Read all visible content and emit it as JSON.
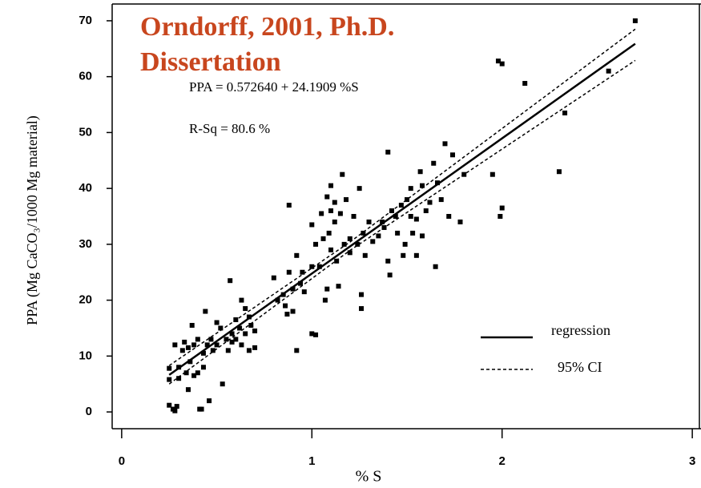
{
  "chart_data": {
    "type": "scatter",
    "title_lines": [
      "Orndorff, 2001, Ph.D.",
      "Dissertation"
    ],
    "annotations": [
      "PPA = 0.572640 + 24.1909 %S",
      "R-Sq = 80.6 %"
    ],
    "x_label": "% S",
    "y_label": "PPA (Mg CaCO₃/1000 Mg material)",
    "xlim": [
      -0.05,
      3.05
    ],
    "ylim": [
      -3,
      73
    ],
    "xticks": [
      0,
      1,
      2,
      3
    ],
    "yticks": [
      0,
      10,
      20,
      30,
      40,
      50,
      60,
      70
    ],
    "color": "#000000",
    "x": [
      0.25,
      0.25,
      0.25,
      0.27,
      0.28,
      0.29,
      0.28,
      0.3,
      0.3,
      0.32,
      0.33,
      0.34,
      0.35,
      0.35,
      0.36,
      0.37,
      0.38,
      0.38,
      0.4,
      0.4,
      0.41,
      0.42,
      0.43,
      0.43,
      0.44,
      0.45,
      0.46,
      0.47,
      0.48,
      0.5,
      0.5,
      0.52,
      0.53,
      0.55,
      0.56,
      0.57,
      0.58,
      0.58,
      0.6,
      0.6,
      0.62,
      0.63,
      0.63,
      0.65,
      0.65,
      0.67,
      0.67,
      0.68,
      0.7,
      0.7,
      0.8,
      0.82,
      0.85,
      0.86,
      0.87,
      0.88,
      0.88,
      0.9,
      0.9,
      0.92,
      0.92,
      0.94,
      0.95,
      0.96,
      1.0,
      1.0,
      1.0,
      1.02,
      1.02,
      1.04,
      1.05,
      1.06,
      1.07,
      1.08,
      1.08,
      1.09,
      1.1,
      1.1,
      1.1,
      1.12,
      1.12,
      1.13,
      1.14,
      1.15,
      1.16,
      1.17,
      1.18,
      1.2,
      1.2,
      1.22,
      1.24,
      1.25,
      1.26,
      1.26,
      1.27,
      1.28,
      1.3,
      1.32,
      1.35,
      1.37,
      1.38,
      1.4,
      1.4,
      1.41,
      1.42,
      1.44,
      1.45,
      1.47,
      1.48,
      1.49,
      1.5,
      1.52,
      1.52,
      1.53,
      1.55,
      1.55,
      1.57,
      1.58,
      1.58,
      1.6,
      1.62,
      1.64,
      1.65,
      1.66,
      1.68,
      1.7,
      1.72,
      1.74,
      1.78,
      1.8,
      1.95,
      1.98,
      1.99,
      2.0,
      2.0,
      2.12,
      2.3,
      2.33,
      2.56,
      2.7
    ],
    "values": [
      7.8,
      5.8,
      1.2,
      0.5,
      0.2,
      1,
      12,
      8,
      6,
      11,
      12.5,
      7,
      4,
      11.5,
      9,
      15.5,
      6.5,
      12,
      13,
      7,
      0.5,
      0.5,
      10.5,
      8,
      18,
      12,
      2,
      13,
      11,
      16,
      12,
      15,
      5,
      13,
      11,
      23.5,
      12.5,
      14,
      16.5,
      13,
      15,
      20,
      12,
      18.5,
      14,
      17,
      11,
      15.5,
      14.5,
      11.5,
      24,
      20,
      21,
      19,
      17.5,
      37,
      25,
      22,
      18,
      28,
      11,
      23,
      25,
      21.5,
      33.5,
      26,
      14,
      13.8,
      30,
      26,
      35.5,
      31,
      20,
      22,
      38.5,
      32,
      40.5,
      36,
      29,
      37.5,
      34,
      27,
      22.5,
      35.5,
      42.5,
      30,
      38,
      31,
      28.5,
      35,
      30,
      40,
      18.5,
      21,
      32,
      28,
      34,
      30.5,
      31.5,
      34,
      33,
      46.5,
      27,
      24.5,
      36,
      35,
      32,
      37,
      28,
      30,
      38,
      40,
      35,
      32,
      34.5,
      28,
      43,
      40.5,
      31.5,
      36,
      37.5,
      44.5,
      26,
      41,
      38,
      48,
      35,
      46,
      34,
      42.5,
      42.5,
      62.8,
      35,
      62.3,
      36.5,
      58.8,
      43,
      53.5,
      61,
      70
    ],
    "fits": [
      {
        "name": "regression",
        "style": "solid",
        "x": [
          0.25,
          2.7
        ],
        "values": [
          6.62,
          65.89
        ]
      },
      {
        "name": "95% CI",
        "style": "dashed",
        "x": [
          0.25,
          1.2,
          2.7
        ],
        "upper": [
          8.3,
          30.4,
          68.5
        ],
        "lower": [
          5.0,
          28.9,
          62.9
        ]
      }
    ]
  }
}
